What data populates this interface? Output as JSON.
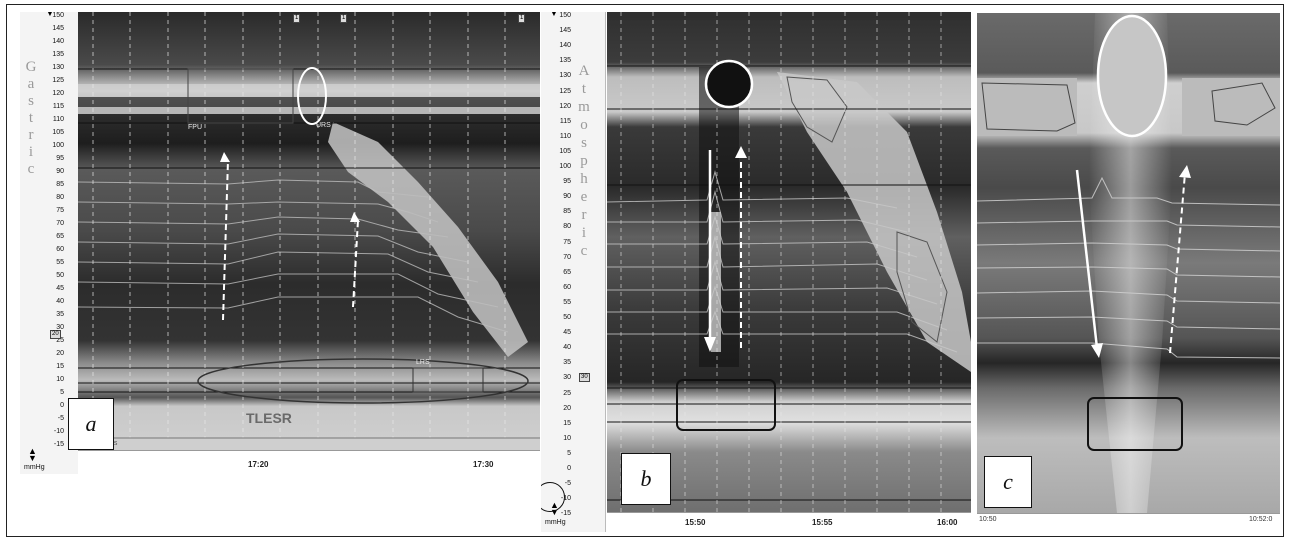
{
  "figure": {
    "panels": [
      {
        "id": "a",
        "letter": "a",
        "region_label_letters": [
          "G",
          "a",
          "s",
          "t",
          "r",
          "i",
          "c"
        ],
        "ticks": [
          "150",
          "145",
          "140",
          "135",
          "130",
          "125",
          "120",
          "115",
          "110",
          "105",
          "100",
          "95",
          "90",
          "85",
          "80",
          "75",
          "70",
          "65",
          "60",
          "55",
          "50",
          "45",
          "40",
          "35",
          "30",
          "25",
          "20",
          "15",
          "10",
          "5",
          "0",
          "-5",
          "-10",
          "-15"
        ],
        "unit": "mmHg",
        "marker_value": "20",
        "time_labels": [
          "17:20",
          "17:30"
        ],
        "annotations": {
          "tlesr": "TLESR",
          "fpu": "FPU",
          "urs": "URS",
          "lrs": "LRS",
          "scale": "1 s"
        },
        "top_markers": [
          "1",
          "1",
          "1"
        ]
      },
      {
        "id": "b",
        "letter": "b",
        "region_label_letters": [
          "A",
          "t",
          "m",
          "o",
          "s",
          "p",
          "h",
          "e",
          "r",
          "i",
          "c"
        ],
        "ticks": [
          "150",
          "145",
          "140",
          "135",
          "130",
          "125",
          "120",
          "115",
          "110",
          "105",
          "100",
          "95",
          "90",
          "85",
          "80",
          "75",
          "70",
          "65",
          "60",
          "55",
          "50",
          "45",
          "40",
          "35",
          "30",
          "25",
          "20",
          "15",
          "10",
          "5",
          "0",
          "-5",
          "-10",
          "-15"
        ],
        "unit": "mmHg",
        "marker_value": "30",
        "time_labels": [
          "15:50",
          "15:55",
          "16:00"
        ]
      },
      {
        "id": "c",
        "letter": "c",
        "time_labels": [
          "10:50",
          "10:52:0"
        ]
      }
    ]
  }
}
